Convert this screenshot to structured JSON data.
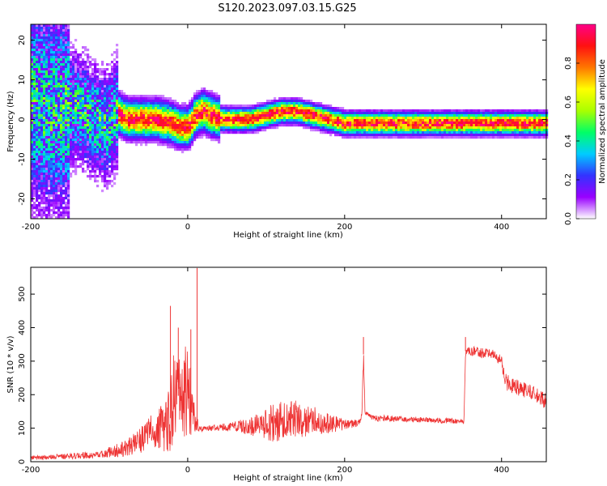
{
  "figure": {
    "title": "S120.2023.097.03.15.G25"
  },
  "chart_data": [
    {
      "type": "heatmap",
      "xlabel": "Height of straight line (km)",
      "ylabel": "Frequency (Hz)",
      "xlim": [
        -200,
        457
      ],
      "ylim": [
        -25,
        24
      ],
      "x_ticks": [
        -200,
        0,
        200,
        400
      ],
      "y_ticks": [
        -20,
        -10,
        0,
        10,
        20
      ],
      "ridge": {
        "x": [
          -200,
          -180,
          -160,
          -140,
          -120,
          -105,
          -95,
          -90,
          -85,
          -75,
          -60,
          -40,
          -20,
          -10,
          0,
          5,
          10,
          20,
          30,
          45,
          60,
          80,
          100,
          120,
          140,
          160,
          180,
          200,
          220,
          260,
          300,
          340,
          380,
          420,
          457
        ],
        "y": [
          5,
          3,
          2,
          3,
          0,
          -2,
          0,
          2,
          1,
          0,
          0,
          0,
          -1,
          -2,
          -2,
          -1,
          1,
          2,
          1,
          0,
          0,
          0,
          1,
          2,
          2,
          1,
          0,
          -1,
          -1,
          -1,
          -1,
          -1,
          -1,
          -1,
          -1
        ]
      },
      "colorbar": {
        "label": "Normalized spectral amplitude",
        "ticks": [
          0.0,
          0.2,
          0.4,
          0.6,
          0.8
        ],
        "range": [
          0,
          1
        ],
        "colors": [
          "#ffffff",
          "#9900ff",
          "#3333ff",
          "#00ccff",
          "#00ff66",
          "#aaff00",
          "#ffff00",
          "#ff7700",
          "#ff1111",
          "#ff0088"
        ]
      }
    },
    {
      "type": "line",
      "xlabel": "Height of straight line (km)",
      "ylabel": "SNR (10 * v/v)",
      "xlim": [
        -200,
        457
      ],
      "ylim": [
        0,
        580
      ],
      "x_ticks": [
        -200,
        0,
        200,
        400
      ],
      "y_ticks": [
        0,
        100,
        200,
        300,
        400,
        500
      ],
      "color": "#ee3333",
      "envelope": {
        "x": [
          -200,
          -160,
          -120,
          -100,
          -80,
          -60,
          -40,
          -30,
          -22,
          -18,
          -14,
          -8,
          0,
          6,
          10,
          12,
          16,
          20,
          40,
          80,
          100,
          110,
          120,
          135,
          150,
          165,
          180,
          200,
          218,
          222,
          224,
          226,
          228,
          240,
          300,
          352,
          354,
          356,
          360,
          390,
          400,
          405,
          420,
          440,
          457
        ],
        "mean": [
          12,
          15,
          20,
          28,
          40,
          65,
          95,
          110,
          130,
          170,
          200,
          190,
          220,
          160,
          120,
          110,
          100,
          98,
          103,
          105,
          110,
          115,
          120,
          125,
          125,
          120,
          115,
          110,
          115,
          140,
          320,
          140,
          140,
          130,
          125,
          120,
          330,
          335,
          330,
          320,
          300,
          240,
          220,
          205,
          180
        ],
        "amp": [
          6,
          8,
          10,
          16,
          25,
          40,
          60,
          80,
          100,
          160,
          100,
          120,
          160,
          80,
          30,
          20,
          10,
          8,
          10,
          25,
          50,
          60,
          60,
          60,
          50,
          40,
          30,
          15,
          10,
          10,
          30,
          10,
          10,
          10,
          8,
          8,
          15,
          15,
          15,
          15,
          15,
          25,
          25,
          20,
          25
        ]
      },
      "spikes": [
        {
          "x": -22,
          "y": 465
        },
        {
          "x": -12,
          "y": 400
        },
        {
          "x": 4,
          "y": 395
        },
        {
          "x": 12,
          "y": 578
        },
        {
          "x": 224,
          "y": 372
        },
        {
          "x": 354,
          "y": 372
        }
      ]
    }
  ]
}
